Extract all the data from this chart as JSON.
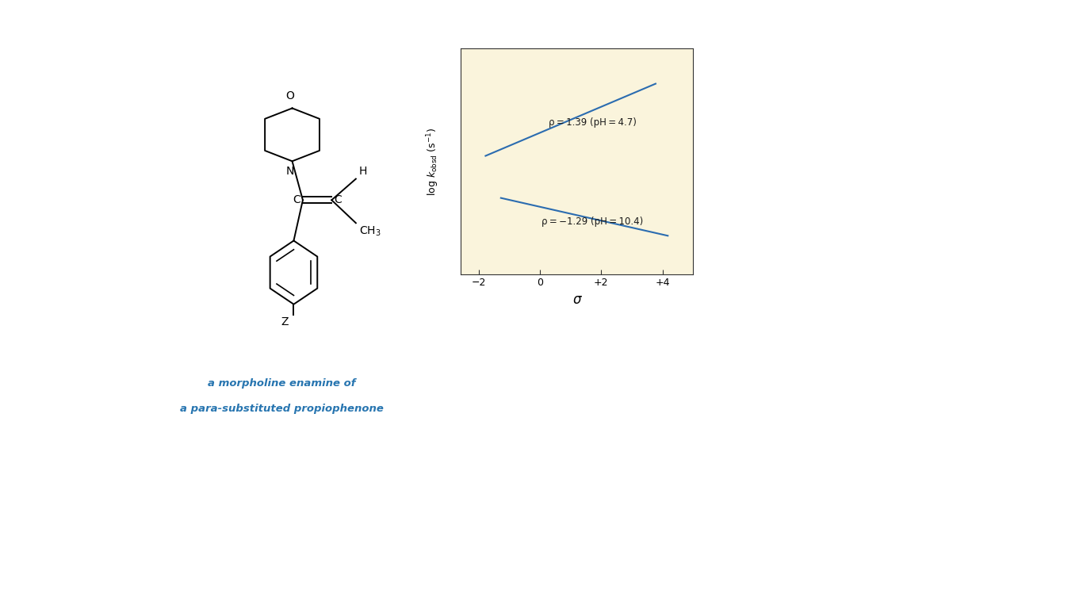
{
  "background_color": "#FFFFFF",
  "plot_bg_color": "#FAF4DC",
  "line1_color": "#2B6CB0",
  "line2_color": "#2B6CB0",
  "line1_x": [
    -1.8,
    3.8
  ],
  "line1_y": [
    0.38,
    0.8
  ],
  "line2_x": [
    -1.3,
    4.2
  ],
  "line2_y": [
    0.14,
    -0.08
  ],
  "label1": "ρ = 1.39 (pH = 4.7)",
  "label2": "ρ = −1.29 (pH = 10.4)",
  "xlabel": "σ",
  "xticks": [
    -2,
    0,
    2,
    4
  ],
  "xticklabels": [
    "−2",
    "0",
    "+2",
    "+4"
  ],
  "xlim": [
    -2.6,
    5.0
  ],
  "ylim": [
    -0.3,
    1.0
  ],
  "struct_text_color": "#2775B0",
  "struct_text": [
    "a morpholine enamine of",
    "a para-substituted propiophenone"
  ]
}
